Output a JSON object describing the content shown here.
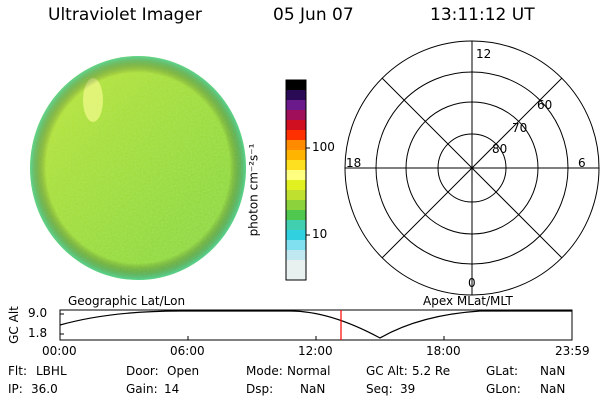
{
  "header": {
    "instrument": "Ultraviolet Imager",
    "date": "05 Jun 07",
    "time": "13:11:12 UT"
  },
  "colorbar": {
    "unit_label": "photon cm⁻²s⁻¹",
    "ticks": [
      "100",
      "10"
    ],
    "scale": "log"
  },
  "polar_plot": {
    "title": "Apex MLat/MLT",
    "mlt_labels": {
      "top": "12",
      "left": "18",
      "right": "6",
      "bottom": "0"
    },
    "lat_labels": [
      "60",
      "70",
      "80"
    ]
  },
  "geo_image": {
    "title": "Geographic Lat/Lon",
    "dominant_color": "#9bd23a"
  },
  "orbit_panel": {
    "ylabel": "GC Alt",
    "y_ticks": [
      "9.0",
      "1.8"
    ],
    "x_ticks": [
      "00:00",
      "06:00",
      "12:00",
      "18:00",
      "23:59"
    ],
    "current_time_marker": "13:11",
    "marker_color": "#ff0000"
  },
  "status": {
    "flt": {
      "label": "Flt:",
      "value": "LBHL"
    },
    "ip": {
      "label": "IP:",
      "value": "36.0"
    },
    "door": {
      "label": "Door:",
      "value": "Open"
    },
    "gain": {
      "label": "Gain:",
      "value": "14"
    },
    "mode": {
      "label": "Mode:",
      "value": "Normal"
    },
    "dsp": {
      "label": "Dsp:",
      "value": "NaN"
    },
    "gcalt": {
      "label": "GC Alt:",
      "value": "5.2 Re"
    },
    "seq": {
      "label": "Seq:",
      "value": "39"
    },
    "glat": {
      "label": "GLat:",
      "value": "NaN"
    },
    "glon": {
      "label": "GLon:",
      "value": "NaN"
    }
  }
}
